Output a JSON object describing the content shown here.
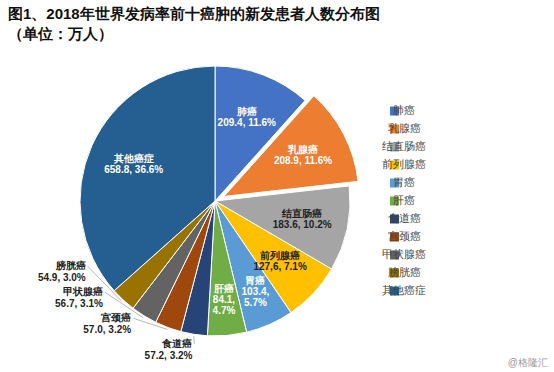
{
  "chart_data": {
    "type": "pie",
    "title": "图1、2018年世界发病率前十癌肿的新发患者人数分布图",
    "subtitle": "（单位：万人）",
    "categories": [
      "肺癌",
      "乳腺癌",
      "结直肠癌",
      "前列腺癌",
      "胃癌",
      "肝癌",
      "食道癌",
      "宫颈癌",
      "甲状腺癌",
      "膀胱癌",
      "其他癌症"
    ],
    "values": [
      209.4,
      208.9,
      183.6,
      127.6,
      103.4,
      84.1,
      57.2,
      57.0,
      56.7,
      54.9,
      658.8
    ],
    "percentages": [
      11.6,
      11.6,
      10.2,
      7.1,
      5.7,
      4.7,
      3.2,
      3.2,
      3.1,
      3.0,
      36.6
    ],
    "value_labels": [
      "209.4, 11.6%",
      "208.9, 11.6%",
      "183.6, 10.2%",
      "127,6, 7.1%",
      "103.4, 5.7%",
      "84.1, 4.7%",
      "57.2, 3.2%",
      "57.0, 3.2%",
      "56.7, 3.1%",
      "54.9, 3.0%",
      "658.8, 36.6%"
    ],
    "colors": [
      "#4472c4",
      "#ed7d31",
      "#a5a5a5",
      "#ffc000",
      "#5b9bd5",
      "#70ad47",
      "#264478",
      "#9e480e",
      "#636363",
      "#997300",
      "#255e91"
    ],
    "data_labels": true,
    "legend": "right",
    "annotations": [
      "@格隆汇"
    ]
  }
}
